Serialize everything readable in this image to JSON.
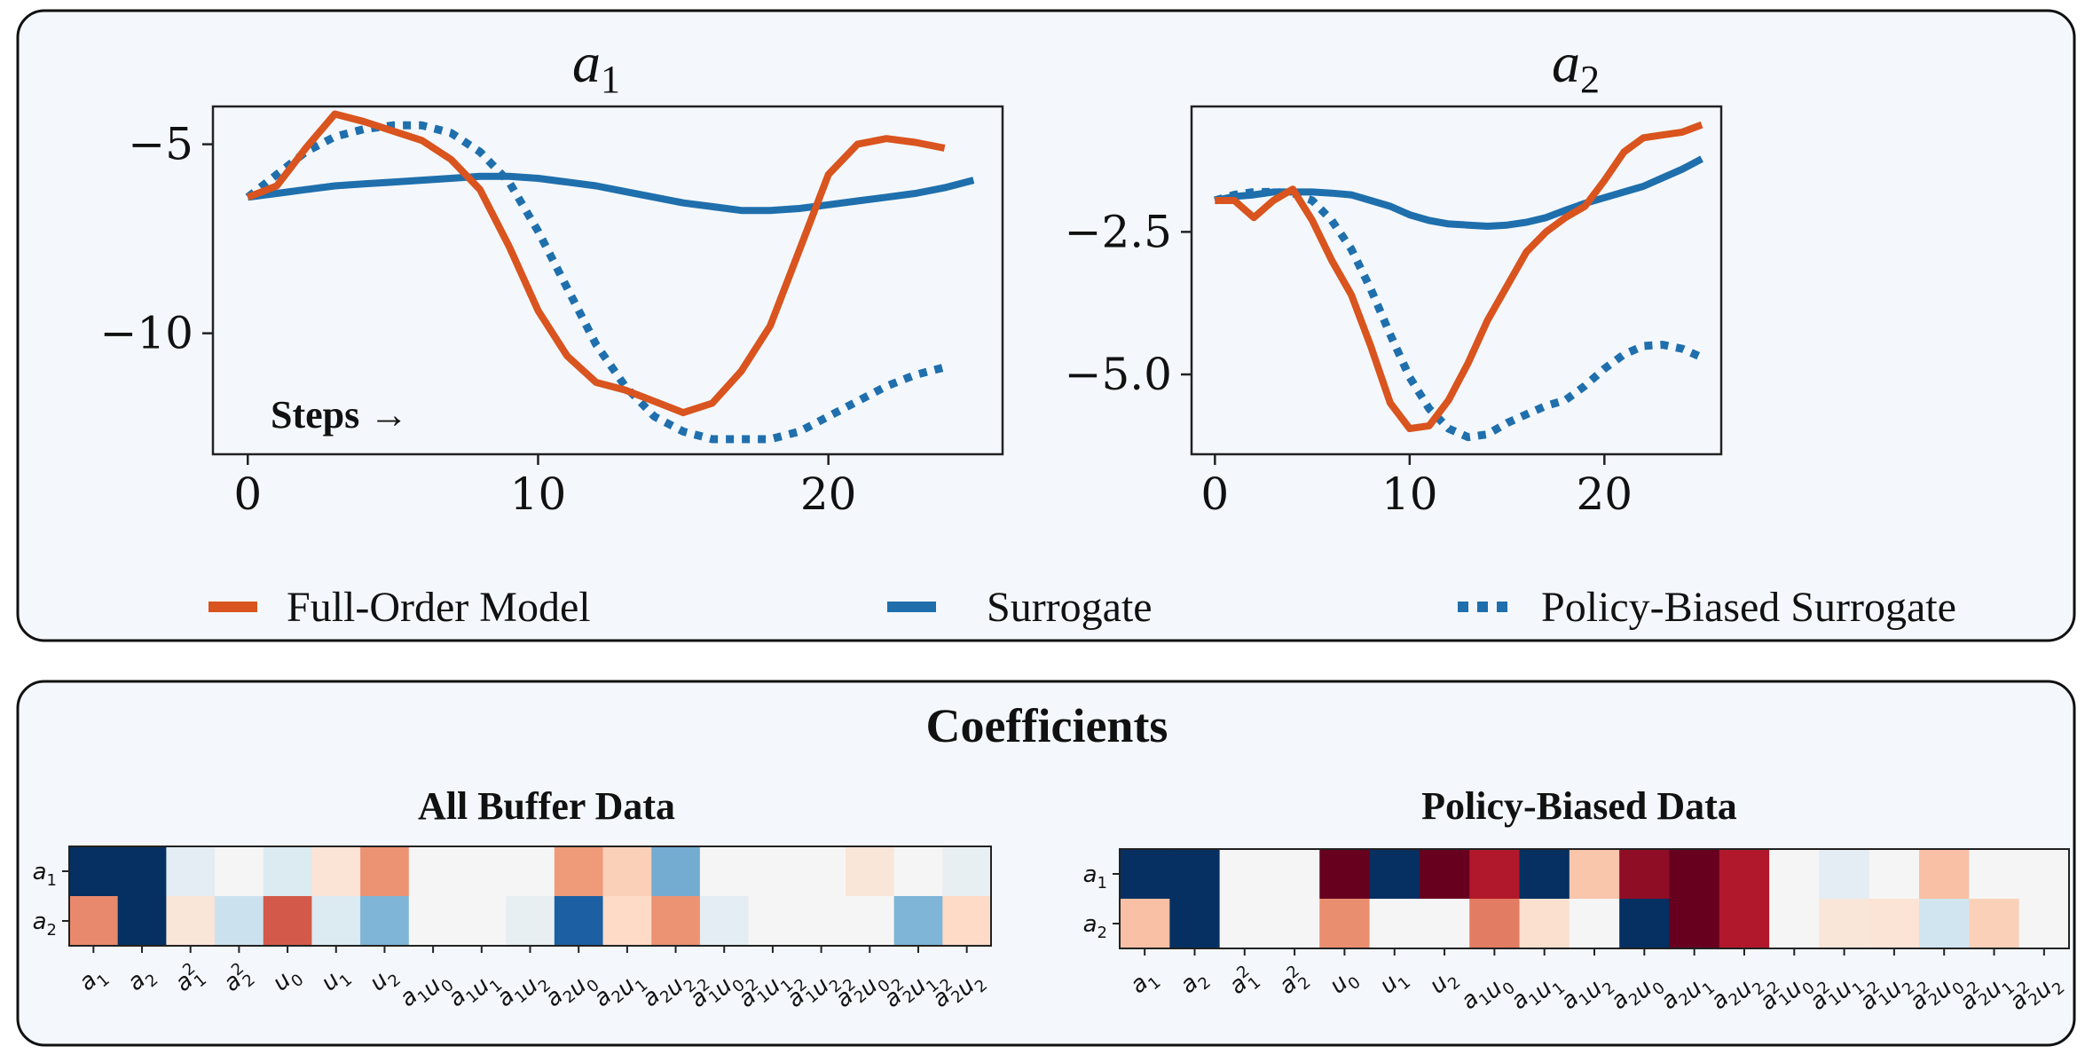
{
  "colors": {
    "panel_bg": "#f4f8fc",
    "panel_border": "#111111",
    "full_order": "#d9541e",
    "surrogate": "#1f6fad",
    "policy_biased": "#1f6fad"
  },
  "legend": {
    "full_order": "Full-Order Model",
    "surrogate": "Surrogate",
    "policy_biased": "Policy-Biased Surrogate"
  },
  "annotation": "Steps →",
  "chart_data": [
    {
      "type": "line",
      "title": "a1",
      "title_base": "a",
      "title_sub": "1",
      "xlabel": "",
      "ylabel": "",
      "xlim": [
        -1.2,
        26
      ],
      "ylim": [
        -13.2,
        -4
      ],
      "xticks": [
        0,
        10,
        20
      ],
      "xtick_labels": [
        "0",
        "10",
        "20"
      ],
      "yticks": [
        -5,
        -10
      ],
      "ytick_labels": [
        "−5",
        "−10"
      ],
      "grid": false,
      "series": [
        {
          "name": "Full-Order Model",
          "style": "solid",
          "x": [
            0,
            1,
            2,
            3,
            4,
            5,
            6,
            7,
            8,
            9,
            10,
            11,
            12,
            13,
            14,
            15,
            16,
            17,
            18,
            19,
            20,
            21,
            22,
            23,
            24
          ],
          "y": [
            -6.4,
            -6.1,
            -5.1,
            -4.2,
            -4.4,
            -4.65,
            -4.9,
            -5.4,
            -6.2,
            -7.7,
            -9.4,
            -10.6,
            -11.3,
            -11.5,
            -11.8,
            -12.1,
            -11.85,
            -11.0,
            -9.8,
            -7.8,
            -5.8,
            -5.0,
            -4.85,
            -4.95,
            -5.1
          ]
        },
        {
          "name": "Surrogate",
          "style": "solid",
          "x": [
            0,
            1,
            2,
            3,
            4,
            5,
            6,
            7,
            8,
            9,
            10,
            11,
            12,
            13,
            14,
            15,
            16,
            17,
            18,
            19,
            20,
            21,
            22,
            23,
            24,
            25
          ],
          "y": [
            -6.4,
            -6.3,
            -6.2,
            -6.1,
            -6.05,
            -6.0,
            -5.95,
            -5.9,
            -5.85,
            -5.85,
            -5.9,
            -6.0,
            -6.1,
            -6.25,
            -6.4,
            -6.55,
            -6.65,
            -6.75,
            -6.75,
            -6.7,
            -6.6,
            -6.5,
            -6.4,
            -6.3,
            -6.15,
            -5.95
          ]
        },
        {
          "name": "Policy-Biased Surrogate",
          "style": "dotted",
          "x": [
            0,
            1,
            2,
            3,
            4,
            5,
            6,
            7,
            8,
            9,
            10,
            11,
            12,
            13,
            14,
            15,
            16,
            17,
            18,
            19,
            20,
            21,
            22,
            23,
            24
          ],
          "y": [
            -6.4,
            -5.8,
            -5.2,
            -4.8,
            -4.6,
            -4.5,
            -4.5,
            -4.7,
            -5.2,
            -6.0,
            -7.3,
            -8.8,
            -10.3,
            -11.4,
            -12.2,
            -12.6,
            -12.8,
            -12.8,
            -12.8,
            -12.6,
            -12.2,
            -11.8,
            -11.4,
            -11.1,
            -10.9
          ]
        }
      ]
    },
    {
      "type": "line",
      "title": "a2",
      "title_base": "a",
      "title_sub": "2",
      "xlabel": "",
      "ylabel": "",
      "xlim": [
        -1.2,
        26
      ],
      "ylim": [
        -6.4,
        -0.3
      ],
      "xticks": [
        0,
        10,
        20
      ],
      "xtick_labels": [
        "0",
        "10",
        "20"
      ],
      "yticks": [
        -2.5,
        -5.0
      ],
      "ytick_labels": [
        "−2.5",
        "−5.0"
      ],
      "grid": false,
      "series": [
        {
          "name": "Full-Order Model",
          "style": "solid",
          "x": [
            0,
            1,
            2,
            3,
            4,
            5,
            6,
            7,
            8,
            9,
            10,
            11,
            12,
            13,
            14,
            15,
            16,
            17,
            18,
            19,
            20,
            21,
            22,
            23,
            24,
            25
          ],
          "y": [
            -1.95,
            -1.95,
            -2.25,
            -1.95,
            -1.75,
            -2.3,
            -3.0,
            -3.6,
            -4.5,
            -5.5,
            -5.95,
            -5.9,
            -5.45,
            -4.8,
            -4.05,
            -3.45,
            -2.85,
            -2.5,
            -2.25,
            -2.05,
            -1.6,
            -1.1,
            -0.85,
            -0.8,
            -0.75,
            -0.62
          ]
        },
        {
          "name": "Surrogate",
          "style": "solid",
          "x": [
            0,
            1,
            2,
            3,
            4,
            5,
            6,
            7,
            8,
            9,
            10,
            11,
            12,
            13,
            14,
            15,
            16,
            17,
            18,
            19,
            20,
            21,
            22,
            23,
            24,
            25
          ],
          "y": [
            -1.95,
            -1.88,
            -1.85,
            -1.8,
            -1.8,
            -1.8,
            -1.82,
            -1.85,
            -1.95,
            -2.05,
            -2.2,
            -2.3,
            -2.36,
            -2.38,
            -2.4,
            -2.38,
            -2.33,
            -2.25,
            -2.12,
            -2.0,
            -1.9,
            -1.8,
            -1.7,
            -1.55,
            -1.4,
            -1.22
          ]
        },
        {
          "name": "Policy-Biased Surrogate",
          "style": "dotted",
          "x": [
            0,
            1,
            2,
            3,
            4,
            5,
            6,
            7,
            8,
            9,
            10,
            11,
            12,
            13,
            14,
            15,
            16,
            17,
            18,
            19,
            20,
            21,
            22,
            23,
            24,
            25
          ],
          "y": [
            -1.95,
            -1.85,
            -1.8,
            -1.8,
            -1.82,
            -1.95,
            -2.3,
            -2.8,
            -3.5,
            -4.3,
            -5.05,
            -5.6,
            -5.95,
            -6.1,
            -6.05,
            -5.85,
            -5.7,
            -5.55,
            -5.45,
            -5.2,
            -4.9,
            -4.65,
            -4.5,
            -4.48,
            -4.55,
            -4.7
          ]
        }
      ]
    },
    {
      "type": "heatmap",
      "title": "All Buffer Data",
      "rows": [
        "a1",
        "a2"
      ],
      "columns": [
        "a1",
        "a2",
        "a1^2",
        "a2^2",
        "u0",
        "u1",
        "u2",
        "a1u0",
        "a1u1",
        "a1u2",
        "a2u0",
        "a2u1",
        "a2u2",
        "a1^2u0",
        "a1^2u1",
        "a1^2u2",
        "a2^2u0",
        "a2^2u1",
        "a2^2u2"
      ],
      "values": [
        [
          -1.0,
          -1.0,
          -0.05,
          0.0,
          -0.07,
          0.07,
          0.38,
          0.0,
          0.0,
          0.0,
          0.35,
          0.14,
          -0.38,
          0.0,
          0.0,
          0.0,
          0.06,
          0.0,
          -0.04
        ],
        [
          0.42,
          -1.0,
          0.06,
          -0.12,
          0.62,
          -0.07,
          -0.35,
          0.0,
          0.0,
          -0.04,
          -0.65,
          0.1,
          0.38,
          -0.05,
          0.0,
          0.0,
          0.0,
          -0.35,
          0.1
        ]
      ],
      "vmin": -1,
      "vmax": 1
    },
    {
      "type": "heatmap",
      "title": "Policy-Biased Data",
      "rows": [
        "a1",
        "a2"
      ],
      "columns": [
        "a1",
        "a2",
        "a1^2",
        "a2^2",
        "u0",
        "u1",
        "u2",
        "a1u0",
        "a1u1",
        "a1u2",
        "a2u0",
        "a2u1",
        "a2u2",
        "a1^2u0",
        "a1^2u1",
        "a1^2u2",
        "a2^2u0",
        "a2^2u1",
        "a2^2u2"
      ],
      "values": [
        [
          -1.0,
          -1.0,
          0.0,
          0.0,
          1.0,
          -1.0,
          1.0,
          0.85,
          -1.0,
          0.18,
          0.92,
          1.0,
          0.85,
          0.0,
          -0.05,
          0.0,
          0.2,
          0.0,
          0.0
        ],
        [
          0.2,
          -1.0,
          0.0,
          0.0,
          0.4,
          0.0,
          0.0,
          0.48,
          0.08,
          0.0,
          -1.0,
          1.0,
          0.85,
          0.0,
          0.06,
          0.07,
          -0.1,
          0.14,
          0.0
        ]
      ],
      "vmin": -1,
      "vmax": 1
    }
  ],
  "coefficients_title": "Coefficients"
}
